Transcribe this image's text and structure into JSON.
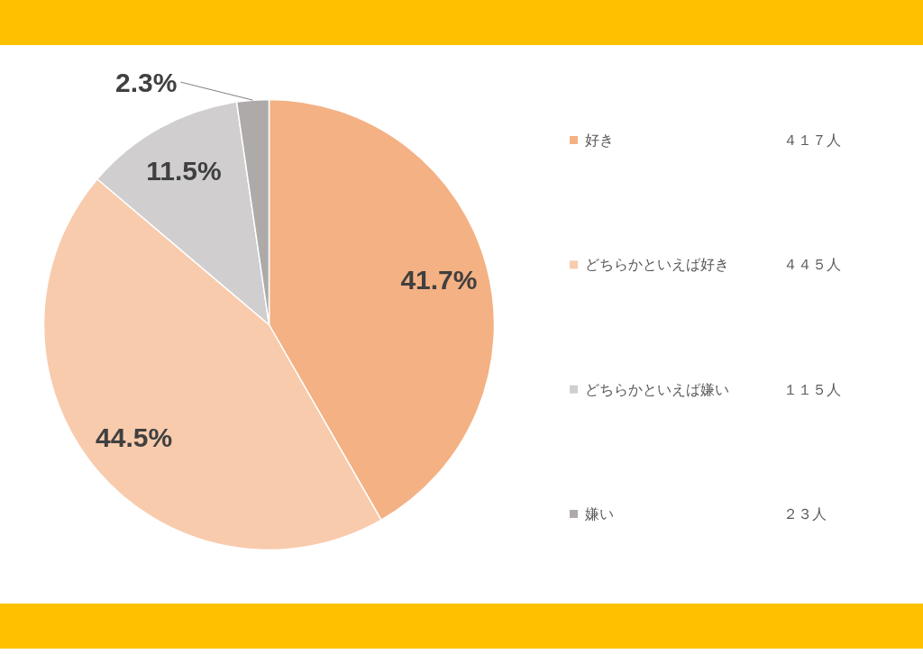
{
  "chart_data": {
    "type": "pie",
    "categories": [
      "好き",
      "どちらかといえば好き",
      "どちらかといえば嫌い",
      "嫌い"
    ],
    "values": [
      41.7,
      44.5,
      11.5,
      2.3
    ],
    "value_labels": [
      "41.7%",
      "44.5%",
      "11.5%",
      "2.3%"
    ],
    "colors": [
      "#f4b183",
      "#f8cbad",
      "#d0cece",
      "#aeaaaa"
    ],
    "annotations": [
      "４１７人",
      "４４５人",
      "１１５人",
      "２３人"
    ],
    "legend": "right"
  }
}
